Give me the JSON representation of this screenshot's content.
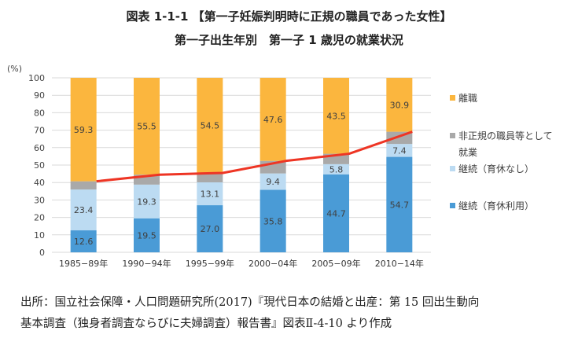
{
  "header": {
    "title": "図表 1-1-1 【第一子妊娠判明時に正規の職員であった女性】",
    "subtitle": "第一子出生年別　第一子 1 歳児の就業状況"
  },
  "chart_data": {
    "type": "bar",
    "stacked": true,
    "categories": [
      "1985−89年",
      "1990−94年",
      "1995−99年",
      "2000−04年",
      "2005−09年",
      "2010−14年"
    ],
    "ylabel": "(%)",
    "ylim": [
      0,
      100
    ],
    "yticks": [
      0,
      10,
      20,
      30,
      40,
      50,
      60,
      70,
      80,
      90,
      100
    ],
    "grid": true,
    "legend_position": "right",
    "series": [
      {
        "name": "継続（育休利用）",
        "color": "#4a9bd6",
        "values": [
          12.6,
          19.5,
          27.0,
          35.8,
          44.7,
          54.7
        ],
        "labels": [
          "12.6",
          "19.5",
          "27.0",
          "35.8",
          "44.7",
          "54.7"
        ]
      },
      {
        "name": "継続（育休なし）",
        "color": "#bcdbf2",
        "values": [
          23.4,
          19.3,
          13.1,
          9.4,
          5.8,
          7.4
        ],
        "labels": [
          "23.4",
          "19.3",
          "13.1",
          "9.4",
          "5.8",
          "7.4"
        ]
      },
      {
        "name": "非正規の職員等として就業",
        "color": "#a9a9a9",
        "values": [
          4.7,
          5.7,
          5.4,
          7.2,
          6.0,
          7.0
        ],
        "labels": [
          "",
          "",
          "",
          "",
          "",
          ""
        ]
      },
      {
        "name": "離職",
        "color": "#fbb63e",
        "values": [
          59.3,
          55.5,
          54.5,
          47.6,
          43.5,
          30.9
        ],
        "labels": [
          "59.3",
          "55.5",
          "54.5",
          "47.6",
          "43.5",
          "30.9"
        ]
      }
    ],
    "line": {
      "color": "#ee3524",
      "values": [
        40.7,
        44.5,
        45.5,
        52.4,
        56.5,
        69.1
      ]
    },
    "legend": [
      {
        "lines": [
          "離職"
        ],
        "color": "#fbb63e"
      },
      {
        "lines": [
          "非正規の職員等として",
          "就業"
        ],
        "color": "#a9a9a9"
      },
      {
        "lines": [
          "継続（育休なし）"
        ],
        "color": "#bcdbf2"
      },
      {
        "lines": [
          "継続（育休利用）"
        ],
        "color": "#4a9bd6"
      }
    ]
  },
  "source": {
    "line1": "出所：国立社会保障・人口問題研究所(2017)『現代日本の結婚と出産：第 15 回出生動向",
    "line2": "基本調査（独身者調査ならびに夫婦調査）報告書』図表Ⅱ-4-10 より作成"
  }
}
